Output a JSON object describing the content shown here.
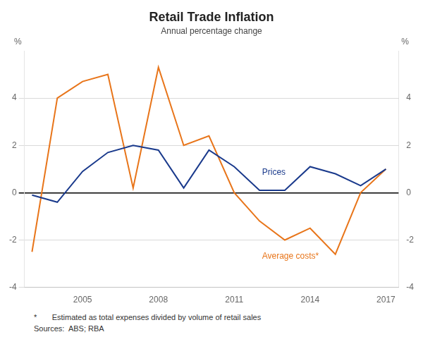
{
  "chart_data": {
    "type": "line",
    "title": "Retail Trade Inflation",
    "subtitle": "Annual percentage change",
    "ylabel": "%",
    "y2label": "%",
    "x": [
      2003,
      2004,
      2005,
      2006,
      2007,
      2008,
      2009,
      2010,
      2011,
      2012,
      2013,
      2014,
      2015,
      2016,
      2017
    ],
    "series": [
      {
        "color": "#1a3a8c",
        "values": [
          -0.1,
          -0.4,
          0.9,
          1.7,
          2.0,
          1.8,
          0.2,
          1.8,
          1.1,
          0.1,
          0.1,
          1.1,
          0.8,
          0.3,
          1.0
        ]
      },
      {
        "color": "#e8751a",
        "values": [
          -2.5,
          4.0,
          4.7,
          5.0,
          0.2,
          5.3,
          2.0,
          2.4,
          0.0,
          -1.2,
          -2.0,
          -1.5,
          -2.6,
          0.0,
          1.0
        ]
      }
    ],
    "annotations": [
      {
        "text": "Prices",
        "x": 2012.1,
        "y": 0.85,
        "color": "#1a3a8c"
      },
      {
        "text": "Average costs*",
        "x": 2012.1,
        "y": -2.7,
        "color": "#e8751a"
      }
    ],
    "footnotes": [
      "*       Estimated as total expenses divided by volume of retail sales",
      "Sources:  ABS; RBA"
    ],
    "xlim": [
      2002.7,
      2017.5
    ],
    "xticks": [
      2005,
      2008,
      2011,
      2014,
      2017
    ],
    "ylim": [
      -4,
      6
    ],
    "yticks": [
      -4,
      -2,
      0,
      2,
      4
    ],
    "y2lim": [
      -4,
      6
    ],
    "y2ticks": [
      -4,
      -2,
      0,
      2,
      4
    ],
    "grid": "y"
  }
}
